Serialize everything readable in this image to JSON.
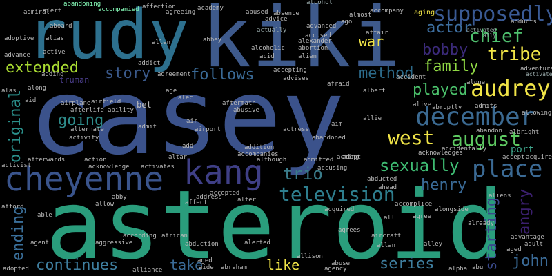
{
  "words": {
    "casey": "casey",
    "asteroid": "asteroid",
    "rudy": "rudy",
    "kiki": "kiki",
    "cheyenne": "cheyenne",
    "kang": "kang",
    "supposedly": "supposedly",
    "december": "december",
    "audrey": "audrey",
    "place": "place",
    "television": "television",
    "chief": "chief",
    "tribe": "tribe",
    "sexually": "sexually",
    "august": "august",
    "west": "west",
    "trio": "trio",
    "extended": "extended",
    "played": "played",
    "family": "family",
    "bobby": "bobby",
    "method": "method",
    "actor": "actor",
    "war": "war",
    "story": "story",
    "follows": "follows",
    "going": "going",
    "henry": "henry",
    "original": "original",
    "ending": "ending",
    "continues": "continues",
    "take": "take",
    "like": "like",
    "series": "series",
    "john": "john",
    "angry": "angry",
    "starting": "starting",
    "port": "port",
    "truman": "truman",
    "actually": "actually",
    "alcohol": "alcohol",
    "accompanied": "accompanied",
    "abandoning": "abandoning",
    "academy": "academy",
    "admiral": "admiral",
    "abused": "abused",
    "absence": "absence",
    "accompany": "accompany",
    "aging": "aging",
    "affection": "affection",
    "agreeing": "agreeing",
    "advanced": "advanced",
    "almost": "almost",
    "abducts": "abducts",
    "activated": "activated",
    "ally": "ally",
    "activate": "activate",
    "alliance": "alliance",
    "adopted": "adopted",
    "agency": "agency",
    "abuse": "abuse",
    "alpha": "alpha",
    "aide": "aide",
    "abraham": "abraham",
    "aged": "aged",
    "agent": "agent",
    "aggressive": "aggressive",
    "abduction": "abduction",
    "alerted": "alerted",
    "aircraft": "aircraft",
    "accomplice": "accomplice",
    "alongside": "alongside",
    "already": "already",
    "adult": "adult",
    "aged2": "aged",
    "advantage": "advantage",
    "adventure": "adventure",
    "albright": "albright",
    "abandon": "abandon",
    "acquires": "acquires",
    "accept": "accept",
    "accidentally": "accidentally",
    "acknowledges": "acknowledges",
    "aim": "aim",
    "actress": "actress",
    "airport": "airport",
    "admit": "admit",
    "air": "air",
    "bet": "bet",
    "activity": "activity",
    "alternate": "alternate",
    "alec": "alec",
    "age": "age",
    "agreement": "agreement",
    "ability": "ability",
    "airfield": "airfield",
    "airplane": "airplane",
    "afterlife": "afterlife",
    "aid": "aid",
    "along": "along",
    "alas": "alas",
    "adding": "adding",
    "advance": "advance",
    "adoptive": "adoptive",
    "alias": "alias",
    "active": "active",
    "allen": "allen",
    "addict": "addict",
    "abbey": "abbey",
    "accused": "accused",
    "alien": "alien",
    "acid": "acid",
    "alcoholic": "alcoholic",
    "alexander": "alexander",
    "abortion": "abortion",
    "advice": "advice",
    "ago": "ago",
    "affair": "affair",
    "accident": "accident",
    "afraid": "afraid",
    "albert": "albert",
    "alone": "alone",
    "alive": "alive",
    "abruptly": "abruptly",
    "admits": "admits",
    "allowing": "allowing",
    "addition": "addition",
    "accompanies": "accompanies",
    "although": "although",
    "abandoned": "abandoned",
    "acting": "acting",
    "adopt": "adopt",
    "admitted": "admitted",
    "accusing": "accusing",
    "abducted": "abducted",
    "ahead": "ahead",
    "acquired": "acquired",
    "allie": "allie",
    "accepting": "accepting",
    "advises": "advises",
    "aftermath": "aftermath",
    "abusive": "abusive",
    "activist": "activist",
    "afterwards": "afterwards",
    "action": "action",
    "acknowledge": "acknowledge",
    "activates": "activates",
    "altar": "altar",
    "add": "add",
    "accepted": "accepted",
    "alter": "alter",
    "address": "address",
    "affect": "affect",
    "allow": "allow",
    "able": "able",
    "afford": "afford",
    "abby": "abby",
    "according": "according",
    "african": "african",
    "allison": "allison",
    "agrees": "agrees",
    "allan": "allan",
    "alley": "alley",
    "agree": "agree",
    "all": "all",
    "aliens": "aliens",
    "abu": "abu",
    "aboard": "aboard",
    "alert": "alert"
  }
}
